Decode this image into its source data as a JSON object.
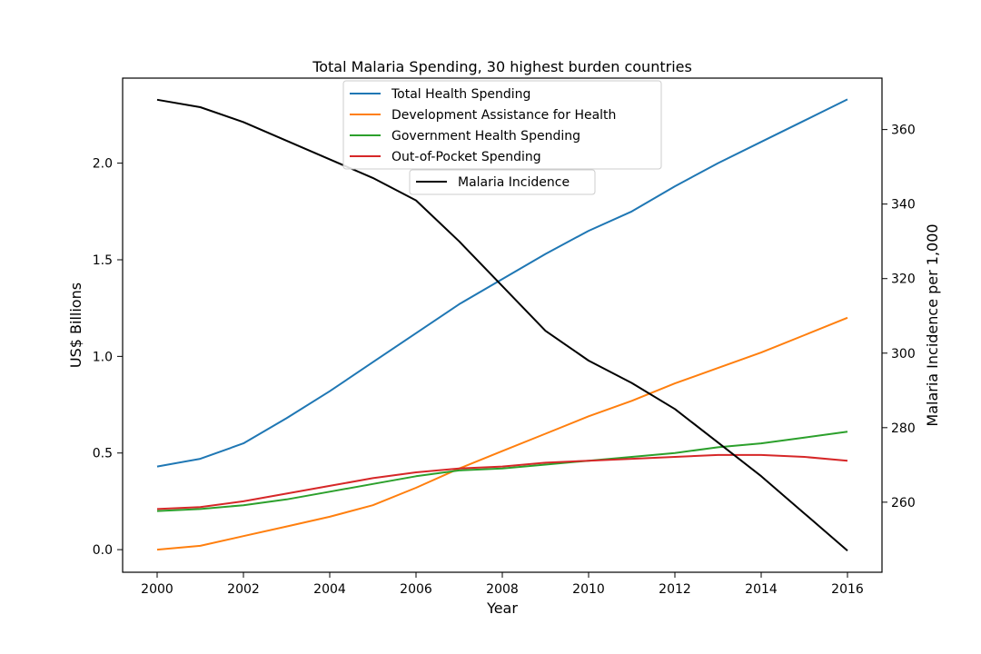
{
  "chart_data": {
    "type": "line",
    "title": "Total Malaria Spending, 30 highest burden countries",
    "xlabel": "Year",
    "ylabel": "US$ Billions",
    "y2label": "Malaria Incidence per 1,000",
    "x": [
      2000,
      2001,
      2002,
      2003,
      2004,
      2005,
      2006,
      2007,
      2008,
      2009,
      2010,
      2011,
      2012,
      2013,
      2014,
      2015,
      2016
    ],
    "xticks": [
      "2000",
      "2002",
      "2004",
      "2006",
      "2008",
      "2010",
      "2012",
      "2014",
      "2016"
    ],
    "yticks": [
      "0.0",
      "0.5",
      "1.0",
      "1.5",
      "2.0"
    ],
    "y2ticks": [
      "260",
      "280",
      "300",
      "320",
      "340",
      "360"
    ],
    "grid": false,
    "legend_position": "top-center",
    "series": [
      {
        "name": "Total Health Spending",
        "axis": "left",
        "color": "#1f77b4",
        "values": [
          0.43,
          0.47,
          0.55,
          0.68,
          0.82,
          0.97,
          1.12,
          1.27,
          1.4,
          1.53,
          1.65,
          1.75,
          1.88,
          2.0,
          2.11,
          2.22,
          2.33
        ]
      },
      {
        "name": "Development Assistance for Health",
        "axis": "left",
        "color": "#ff7f0e",
        "values": [
          0.0,
          0.02,
          0.07,
          0.12,
          0.17,
          0.23,
          0.32,
          0.42,
          0.51,
          0.6,
          0.69,
          0.77,
          0.86,
          0.94,
          1.02,
          1.11,
          1.2
        ]
      },
      {
        "name": "Government Health Spending",
        "axis": "left",
        "color": "#2ca02c",
        "values": [
          0.2,
          0.21,
          0.23,
          0.26,
          0.3,
          0.34,
          0.38,
          0.41,
          0.42,
          0.44,
          0.46,
          0.48,
          0.5,
          0.53,
          0.55,
          0.58,
          0.61
        ]
      },
      {
        "name": "Out-of-Pocket Spending",
        "axis": "left",
        "color": "#d62728",
        "values": [
          0.21,
          0.22,
          0.25,
          0.29,
          0.33,
          0.37,
          0.4,
          0.42,
          0.43,
          0.45,
          0.46,
          0.47,
          0.48,
          0.49,
          0.49,
          0.48,
          0.46
        ]
      },
      {
        "name": "Malaria Incidence",
        "axis": "right",
        "color": "#000000",
        "values": [
          368,
          366,
          362,
          357,
          352,
          347,
          341,
          330,
          318,
          306,
          298,
          292,
          285,
          276,
          267,
          257,
          247
        ]
      }
    ]
  }
}
